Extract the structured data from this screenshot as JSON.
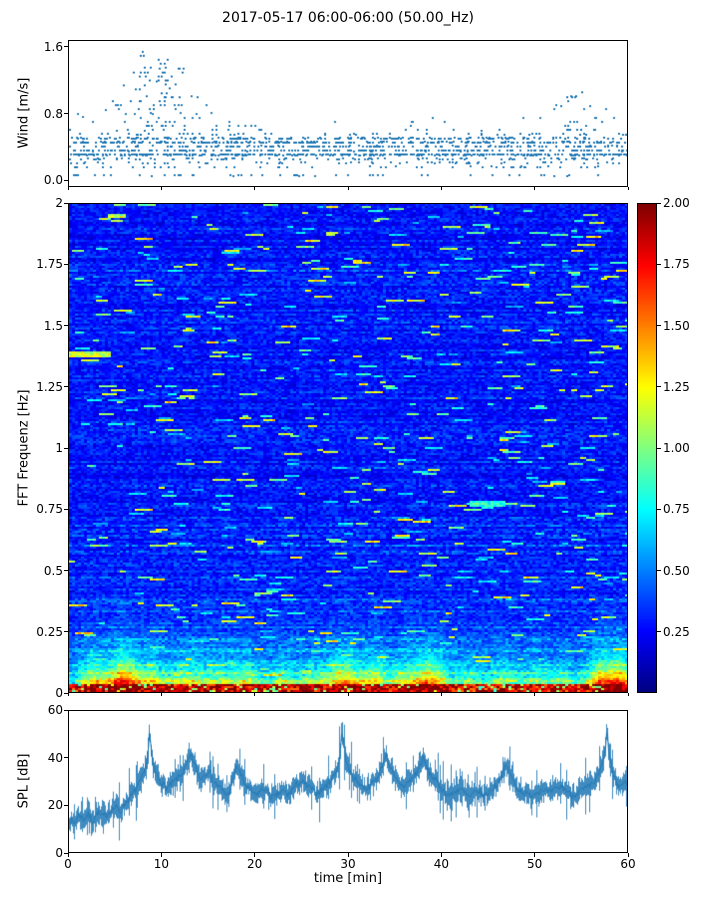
{
  "title": "2017-05-17 06:00-06:00 (50.00_Hz)",
  "colors": {
    "marker": "#1f77b4",
    "spl_line": "#1f77b4",
    "axis": "#000000",
    "background": "#ffffff"
  },
  "chart_data": [
    {
      "type": "scatter",
      "ylabel": "Wind [m/s]",
      "ylim": [
        -0.08,
        1.68
      ],
      "ytick_values": [
        0.0,
        0.8,
        1.6
      ],
      "ytick_labels": [
        "0.0",
        "0.8",
        "1.6"
      ],
      "xlim": [
        0,
        60
      ],
      "point_count": 1700,
      "value_bands": [
        0.3,
        0.35,
        0.4,
        0.45,
        0.5
      ],
      "envelope": [
        [
          0,
          0.8
        ],
        [
          2,
          0.8
        ],
        [
          4,
          0.85
        ],
        [
          5,
          1.0
        ],
        [
          6,
          1.2
        ],
        [
          7,
          1.4
        ],
        [
          8,
          1.6
        ],
        [
          9,
          1.35
        ],
        [
          10,
          1.5
        ],
        [
          11,
          1.6
        ],
        [
          12,
          1.35
        ],
        [
          13,
          1.35
        ],
        [
          14,
          1.0
        ],
        [
          15,
          0.9
        ],
        [
          16,
          0.8
        ],
        [
          17,
          0.75
        ],
        [
          18,
          0.75
        ],
        [
          19,
          0.65
        ],
        [
          20,
          0.7
        ],
        [
          21,
          0.6
        ],
        [
          23,
          0.5
        ],
        [
          26,
          0.5
        ],
        [
          28,
          0.6
        ],
        [
          29,
          0.9
        ],
        [
          30,
          0.65
        ],
        [
          32,
          0.5
        ],
        [
          33,
          0.6
        ],
        [
          35,
          0.55
        ],
        [
          37,
          0.75
        ],
        [
          38,
          0.75
        ],
        [
          40,
          0.75
        ],
        [
          41,
          0.6
        ],
        [
          43,
          0.55
        ],
        [
          44,
          0.6
        ],
        [
          46,
          0.7
        ],
        [
          48,
          0.75
        ],
        [
          50,
          0.8
        ],
        [
          52,
          0.9
        ],
        [
          53,
          1.0
        ],
        [
          55,
          1.1
        ],
        [
          56,
          1.0
        ],
        [
          57,
          0.95
        ],
        [
          58,
          0.85
        ],
        [
          59,
          0.7
        ],
        [
          60,
          0.6
        ]
      ],
      "seed": 20170517
    },
    {
      "type": "heatmap",
      "ylabel": "FFT Frequenz [Hz]",
      "ylim": [
        0,
        2
      ],
      "ytick_values": [
        0,
        0.25,
        0.5,
        0.75,
        1,
        1.25,
        1.5,
        1.75,
        2
      ],
      "ytick_labels": [
        "0",
        "0.25",
        "0.5",
        "0.75",
        "1",
        "1.25",
        "1.5",
        "1.75",
        "2"
      ],
      "xlim": [
        0,
        60
      ],
      "value_range": [
        0,
        2
      ],
      "background_level": [
        0.15,
        0.45
      ],
      "colorbar": {
        "range": [
          0,
          2
        ],
        "tick_values": [
          0.25,
          0.5,
          0.75,
          1,
          1.25,
          1.5,
          1.75,
          2
        ],
        "tick_labels": [
          "0.25",
          "0.50",
          "0.75",
          "1.00",
          "1.25",
          "1.50",
          "1.75",
          "2.00"
        ],
        "colormap": "jet",
        "stops": [
          {
            "pos": 0,
            "color": "#000080"
          },
          {
            "pos": 0.125,
            "color": "#0000ff"
          },
          {
            "pos": 0.375,
            "color": "#00ffff"
          },
          {
            "pos": 0.625,
            "color": "#ffff00"
          },
          {
            "pos": 0.875,
            "color": "#ff0000"
          },
          {
            "pos": 1,
            "color": "#800000"
          }
        ]
      },
      "bursts": [
        [
          2.5,
          1.2,
          0.9
        ],
        [
          6,
          1.3,
          1.5
        ],
        [
          9,
          1.0,
          0.7
        ],
        [
          12.5,
          1.5,
          0.8
        ],
        [
          16,
          1.2,
          0.6
        ],
        [
          19,
          1.2,
          0.7
        ],
        [
          23,
          1.3,
          0.6
        ],
        [
          26,
          1.0,
          0.5
        ],
        [
          29.5,
          1.5,
          1.1
        ],
        [
          33,
          1.2,
          0.8
        ],
        [
          36,
          1.0,
          0.6
        ],
        [
          38.8,
          1.5,
          1.2
        ],
        [
          43,
          1.0,
          0.5
        ],
        [
          46.5,
          1.2,
          0.6
        ],
        [
          50,
          1.2,
          0.5
        ],
        [
          53,
          1.0,
          0.5
        ],
        [
          57.5,
          1.5,
          1.3
        ],
        [
          59.5,
          0.8,
          0.8
        ]
      ],
      "features": [
        {
          "f": 1.38,
          "t0": 0,
          "t1": 4.5,
          "value": 1.15
        },
        {
          "f": 0.77,
          "t0": 43,
          "t1": 47,
          "value": 0.8
        }
      ],
      "seed": 50
    },
    {
      "type": "line",
      "ylabel": "SPL [dB]",
      "xlabel": "time [min]",
      "ylim": [
        0,
        60
      ],
      "ytick_values": [
        0,
        20,
        40,
        60
      ],
      "ytick_labels": [
        "0",
        "20",
        "40",
        "60"
      ],
      "xtick_values": [
        0,
        10,
        20,
        30,
        40,
        50,
        60
      ],
      "xtick_labels": [
        "0",
        "10",
        "20",
        "30",
        "40",
        "50",
        "60"
      ],
      "series": [
        {
          "name": "SPL",
          "points": [
            [
              0,
              14
            ],
            [
              0.5,
              12
            ],
            [
              1,
              16
            ],
            [
              1.5,
              14
            ],
            [
              2,
              16
            ],
            [
              2.5,
              13
            ],
            [
              3,
              17
            ],
            [
              3.5,
              15
            ],
            [
              4,
              16
            ],
            [
              4.5,
              18
            ],
            [
              5,
              19
            ],
            [
              5.5,
              17
            ],
            [
              6,
              21
            ],
            [
              6.5,
              23
            ],
            [
              7,
              26
            ],
            [
              7.5,
              29
            ],
            [
              8,
              33
            ],
            [
              8.4,
              40
            ],
            [
              8.6,
              52
            ],
            [
              8.8,
              42
            ],
            [
              9,
              36
            ],
            [
              9.5,
              32
            ],
            [
              10,
              29
            ],
            [
              10.5,
              27
            ],
            [
              11,
              29
            ],
            [
              11.5,
              31
            ],
            [
              12,
              33
            ],
            [
              12.5,
              36
            ],
            [
              13,
              41
            ],
            [
              13.5,
              37
            ],
            [
              14,
              31
            ],
            [
              14.5,
              33
            ],
            [
              15,
              35
            ],
            [
              15.5,
              30
            ],
            [
              16,
              28
            ],
            [
              16.5,
              26
            ],
            [
              17,
              24
            ],
            [
              17.5,
              30
            ],
            [
              18,
              37
            ],
            [
              18.5,
              32
            ],
            [
              19,
              28
            ],
            [
              19.5,
              26
            ],
            [
              20,
              24
            ],
            [
              20.5,
              26
            ],
            [
              21,
              27
            ],
            [
              21.5,
              24
            ],
            [
              22,
              23
            ],
            [
              22.5,
              25
            ],
            [
              23,
              26
            ],
            [
              23.5,
              24
            ],
            [
              24,
              27
            ],
            [
              24.5,
              29
            ],
            [
              25,
              30
            ],
            [
              25.5,
              28
            ],
            [
              26,
              27
            ],
            [
              26.5,
              25
            ],
            [
              27,
              26
            ],
            [
              27.5,
              28
            ],
            [
              28,
              30
            ],
            [
              28.5,
              33
            ],
            [
              29,
              38
            ],
            [
              29.3,
              52
            ],
            [
              29.6,
              42
            ],
            [
              30,
              35
            ],
            [
              30.5,
              32
            ],
            [
              31,
              30
            ],
            [
              31.5,
              28
            ],
            [
              32,
              27
            ],
            [
              32.5,
              29
            ],
            [
              33,
              31
            ],
            [
              33.5,
              35
            ],
            [
              34,
              42
            ],
            [
              34.5,
              36
            ],
            [
              35,
              31
            ],
            [
              35.5,
              29
            ],
            [
              36,
              28
            ],
            [
              36.5,
              30
            ],
            [
              37,
              32
            ],
            [
              37.5,
              35
            ],
            [
              38,
              40
            ],
            [
              38.5,
              35
            ],
            [
              39,
              32
            ],
            [
              39.5,
              30
            ],
            [
              40,
              27
            ],
            [
              40.5,
              25
            ],
            [
              41,
              24
            ],
            [
              41.5,
              26
            ],
            [
              42,
              27
            ],
            [
              42.5,
              25
            ],
            [
              43,
              23
            ],
            [
              43.5,
              25
            ],
            [
              44,
              26
            ],
            [
              44.5,
              24
            ],
            [
              45,
              25
            ],
            [
              45.5,
              27
            ],
            [
              46,
              29
            ],
            [
              46.5,
              33
            ],
            [
              47,
              37
            ],
            [
              47.5,
              32
            ],
            [
              48,
              28
            ],
            [
              48.5,
              26
            ],
            [
              49,
              25
            ],
            [
              49.5,
              24
            ],
            [
              50,
              25
            ],
            [
              50.5,
              26
            ],
            [
              51,
              27
            ],
            [
              51.5,
              25
            ],
            [
              52,
              26
            ],
            [
              52.5,
              27
            ],
            [
              53,
              28
            ],
            [
              53.5,
              26
            ],
            [
              54,
              24
            ],
            [
              54.5,
              25
            ],
            [
              55,
              26
            ],
            [
              55.5,
              27
            ],
            [
              56,
              28
            ],
            [
              56.5,
              30
            ],
            [
              57,
              34
            ],
            [
              57.5,
              40
            ],
            [
              57.8,
              52
            ],
            [
              58,
              42
            ],
            [
              58.5,
              32
            ],
            [
              59,
              28
            ],
            [
              59.5,
              29
            ],
            [
              60,
              30
            ]
          ]
        }
      ],
      "seed": 7
    }
  ]
}
